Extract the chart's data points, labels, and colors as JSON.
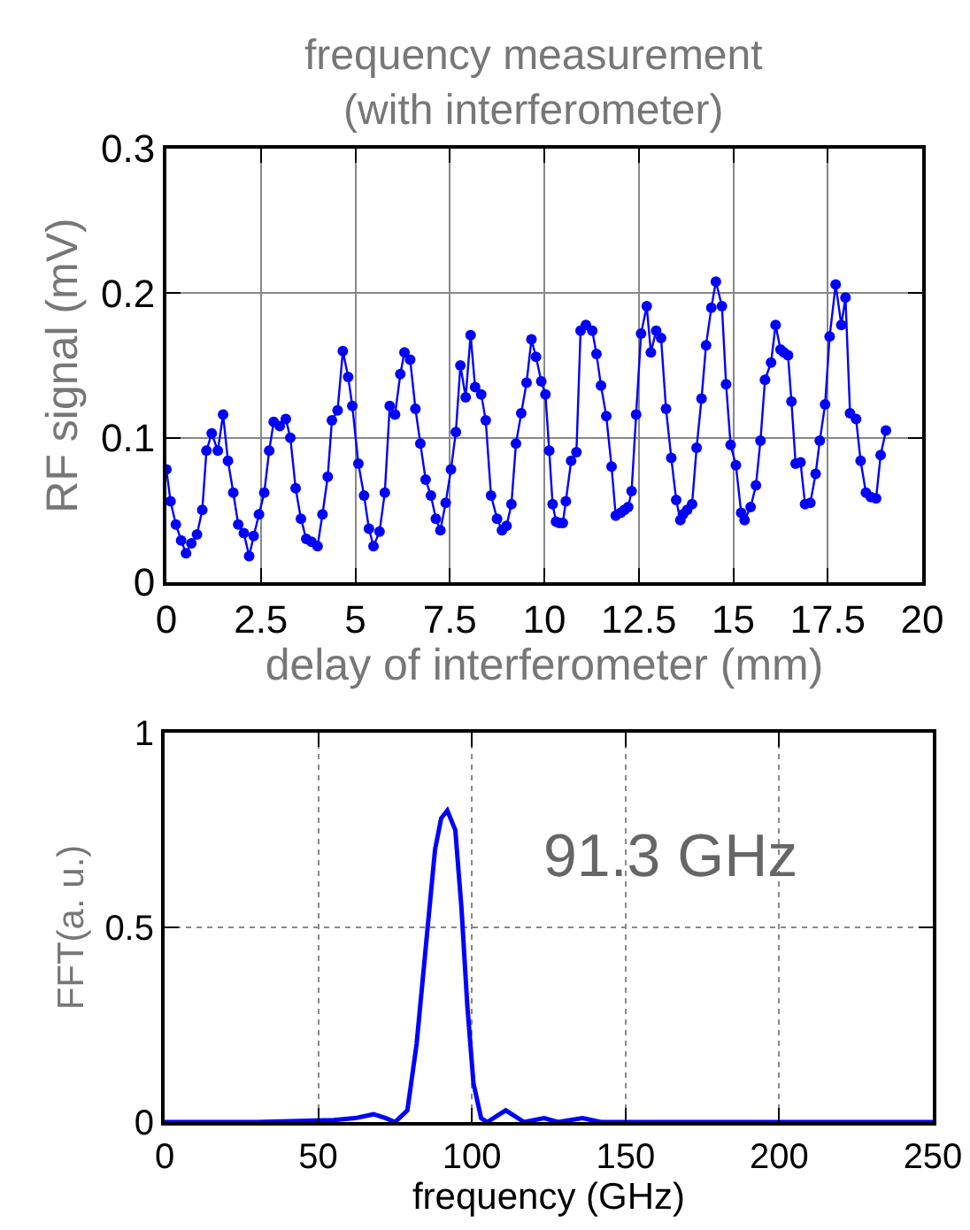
{
  "chart_data": [
    {
      "type": "line",
      "title": "frequency measurement\n(with interferometer)",
      "xlabel": "delay of interferometer (mm)",
      "ylabel": "RF signal (mV)",
      "marker": "circle",
      "grid": true,
      "xlim": [
        0,
        20
      ],
      "xticks": [
        0,
        2.5,
        5,
        7.5,
        10,
        12.5,
        15,
        17.5,
        20
      ],
      "ylim": [
        0,
        0.3
      ],
      "yticks": [
        0,
        0.1,
        0.2,
        0.3
      ],
      "series": [
        {
          "color": "#0000ff",
          "x": [
            0,
            0.11,
            0.25,
            0.39,
            0.52,
            0.66,
            0.81,
            0.95,
            1.06,
            1.2,
            1.36,
            1.5,
            1.63,
            1.77,
            1.9,
            2.05,
            2.19,
            2.31,
            2.45,
            2.59,
            2.72,
            2.84,
            3.0,
            3.16,
            3.28,
            3.42,
            3.56,
            3.7,
            3.84,
            4.0,
            4.13,
            4.27,
            4.38,
            4.53,
            4.67,
            4.81,
            4.92,
            5.08,
            5.23,
            5.36,
            5.48,
            5.64,
            5.78,
            5.91,
            6.05,
            6.19,
            6.3,
            6.45,
            6.59,
            6.72,
            6.86,
            7.0,
            7.13,
            7.25,
            7.39,
            7.53,
            7.66,
            7.78,
            7.92,
            8.05,
            8.17,
            8.33,
            8.45,
            8.59,
            8.75,
            8.88,
            9.0,
            9.13,
            9.25,
            9.39,
            9.53,
            9.66,
            9.78,
            9.92,
            10.03,
            10.13,
            10.22,
            10.31,
            10.4,
            10.49,
            10.57,
            10.71,
            10.85,
            10.96,
            11.1,
            11.27,
            11.38,
            11.5,
            11.64,
            11.78,
            11.89,
            12.02,
            12.12,
            12.22,
            12.31,
            12.43,
            12.56,
            12.71,
            12.82,
            12.96,
            13.09,
            13.22,
            13.36,
            13.49,
            13.6,
            13.67,
            13.78,
            13.91,
            14.03,
            14.16,
            14.28,
            14.42,
            14.54,
            14.7,
            14.81,
            14.93,
            15.07,
            15.21,
            15.3,
            15.46,
            15.6,
            15.72,
            15.84,
            16.0,
            16.12,
            16.25,
            16.34,
            16.45,
            16.54,
            16.65,
            16.78,
            16.9,
            17.04,
            17.18,
            17.29,
            17.43,
            17.55,
            17.71,
            17.86,
            17.97,
            18.09,
            18.25,
            18.37,
            18.51,
            18.64,
            18.78,
            18.9,
            19.04
          ],
          "values": [
            0.078,
            0.056,
            0.04,
            0.029,
            0.02,
            0.027,
            0.033,
            0.05,
            0.091,
            0.103,
            0.091,
            0.116,
            0.084,
            0.062,
            0.04,
            0.034,
            0.018,
            0.032,
            0.047,
            0.062,
            0.091,
            0.111,
            0.108,
            0.113,
            0.1,
            0.065,
            0.044,
            0.03,
            0.028,
            0.025,
            0.047,
            0.073,
            0.112,
            0.119,
            0.16,
            0.142,
            0.122,
            0.082,
            0.06,
            0.037,
            0.025,
            0.035,
            0.062,
            0.122,
            0.116,
            0.144,
            0.159,
            0.154,
            0.12,
            0.096,
            0.071,
            0.06,
            0.044,
            0.036,
            0.055,
            0.078,
            0.104,
            0.15,
            0.128,
            0.171,
            0.135,
            0.13,
            0.112,
            0.06,
            0.044,
            0.036,
            0.039,
            0.054,
            0.096,
            0.117,
            0.138,
            0.168,
            0.156,
            0.139,
            0.13,
            0.091,
            0.054,
            0.042,
            0.041,
            0.041,
            0.056,
            0.084,
            0.09,
            0.174,
            0.178,
            0.174,
            0.158,
            0.136,
            0.115,
            0.08,
            0.046,
            0.048,
            0.05,
            0.052,
            0.063,
            0.116,
            0.172,
            0.191,
            0.159,
            0.174,
            0.169,
            0.12,
            0.086,
            0.057,
            0.043,
            0.047,
            0.05,
            0.054,
            0.093,
            0.127,
            0.164,
            0.19,
            0.208,
            0.191,
            0.137,
            0.095,
            0.081,
            0.048,
            0.043,
            0.052,
            0.067,
            0.098,
            0.14,
            0.152,
            0.178,
            0.161,
            0.159,
            0.157,
            0.125,
            0.082,
            0.083,
            0.054,
            0.055,
            0.075,
            0.098,
            0.123,
            0.17,
            0.206,
            0.178,
            0.197,
            0.117,
            0.113,
            0.084,
            0.062,
            0.059,
            0.058,
            0.088,
            0.105
          ]
        }
      ]
    },
    {
      "type": "line",
      "xlabel": "frequency (GHz)",
      "ylabel": "FFT(a. u.)",
      "grid": true,
      "line_style": "solid",
      "xlim": [
        0,
        250
      ],
      "xticks": [
        0,
        50,
        100,
        150,
        200,
        250
      ],
      "ylim": [
        0,
        1
      ],
      "yticks": [
        0,
        0.5,
        1
      ],
      "annotations": [
        "91.3 GHz"
      ],
      "series": [
        {
          "color": "#0000ff",
          "x": [
            0,
            30,
            55,
            62,
            68,
            72,
            75,
            79,
            82,
            85,
            88,
            90,
            92,
            94.6,
            96.6,
            98.5,
            100.5,
            103,
            105,
            108,
            111,
            114,
            117,
            123.5,
            128,
            136,
            142,
            250
          ],
          "values": [
            0,
            0,
            0.005,
            0.01,
            0.02,
            0.01,
            0,
            0.03,
            0.2,
            0.45,
            0.7,
            0.78,
            0.8,
            0.75,
            0.55,
            0.3,
            0.1,
            0.01,
            0,
            0.015,
            0.03,
            0.015,
            0,
            0.01,
            0,
            0.01,
            0,
            0
          ]
        }
      ]
    }
  ]
}
